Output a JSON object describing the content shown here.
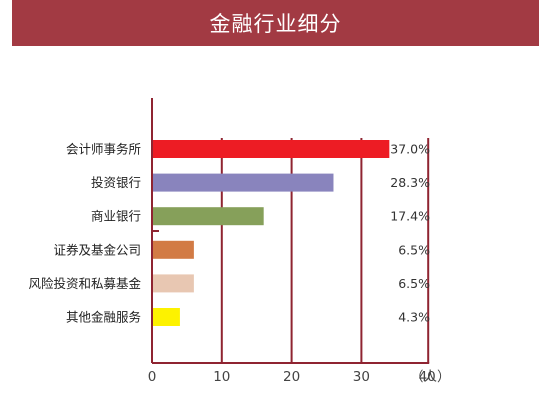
{
  "title": "金融行业细分",
  "colors": {
    "title_bg": "#a23a43",
    "axis": "#8f2431"
  },
  "chart_data": {
    "type": "bar",
    "orientation": "horizontal",
    "categories": [
      "会计师事务所",
      "投资银行",
      "商业银行",
      "证券及基金公司",
      "风险投资和私募基金",
      "其他金融服务"
    ],
    "values": [
      34,
      26,
      16,
      6,
      6,
      4
    ],
    "value_labels": [
      "37.0%",
      "28.3%",
      "17.4%",
      "6.5%",
      "6.5%",
      "4.3%"
    ],
    "bar_colors": [
      "#ed1c24",
      "#8984bd",
      "#86a05a",
      "#d27b45",
      "#e8c7b2",
      "#fdf200"
    ],
    "x_ticks": [
      "0",
      "10",
      "20",
      "30",
      "40"
    ],
    "x_unit": "（人）",
    "xlim": [
      0,
      40
    ],
    "grid": true
  }
}
